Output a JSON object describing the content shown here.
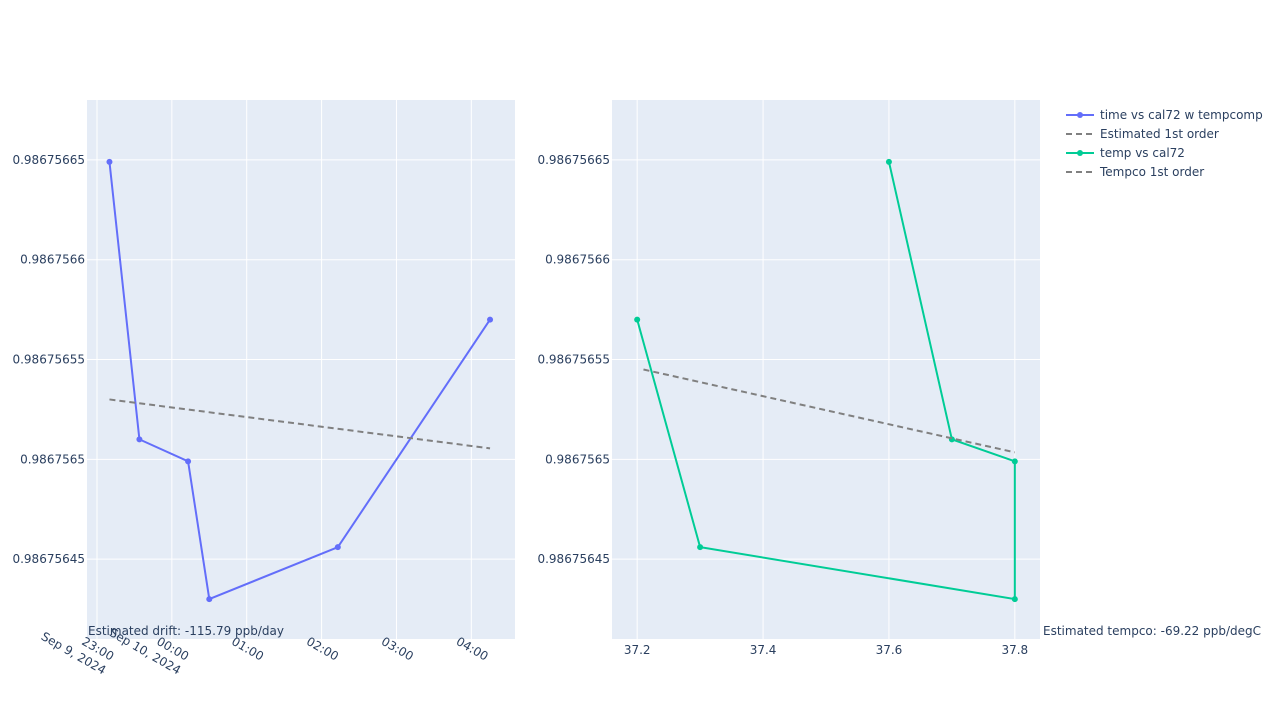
{
  "chart_data": [
    {
      "type": "line",
      "x_type": "date",
      "series": [
        {
          "name": "time vs cal72 w tempcomp",
          "mode": "lines+markers",
          "color": "#636efa",
          "x": [
            "2024-09-09 23:10",
            "2024-09-09 23:34",
            "2024-09-10 00:13",
            "2024-09-10 00:30",
            "2024-09-10 02:13",
            "2024-09-10 04:15"
          ],
          "y": [
            0.986756649,
            0.98675651,
            0.986756499,
            0.98675643,
            0.986756456,
            0.98675657
          ]
        },
        {
          "name": "Estimated 1st order",
          "mode": "lines",
          "dash": "dash",
          "color": "#808080",
          "x": [
            "2024-09-09 23:10",
            "2024-09-10 04:15"
          ],
          "y": [
            0.98675653,
            0.9867565055
          ]
        }
      ],
      "x_ticks": [
        {
          "t": "2024-09-09 23:00",
          "label": "23:00",
          "sub": "Sep 9, 2024"
        },
        {
          "t": "2024-09-10 00:00",
          "label": "00:00",
          "sub": "Sep 10, 2024"
        },
        {
          "t": "2024-09-10 01:00",
          "label": "01:00",
          "sub": ""
        },
        {
          "t": "2024-09-10 02:00",
          "label": "02:00",
          "sub": ""
        },
        {
          "t": "2024-09-10 03:00",
          "label": "03:00",
          "sub": ""
        },
        {
          "t": "2024-09-10 04:00",
          "label": "04:00",
          "sub": ""
        }
      ],
      "xlim": [
        "2024-09-09 22:52",
        "2024-09-10 04:35"
      ],
      "y_ticks": [
        0.98675645,
        0.9867565,
        0.98675655,
        0.9867566,
        0.98675665
      ],
      "y_tick_labels": [
        "0.98675645",
        "0.9867565",
        "0.98675655",
        "0.9867566",
        "0.98675665"
      ],
      "ylim": [
        0.98675641,
        0.98675668
      ],
      "grid": true,
      "annotation": "Estimated drift:  -115.79 ppb/day"
    },
    {
      "type": "line",
      "x_type": "linear",
      "series": [
        {
          "name": "temp vs cal72",
          "mode": "lines+markers",
          "color": "#00cc96",
          "x": [
            37.6,
            37.7,
            37.8,
            37.8,
            37.3,
            37.2
          ],
          "y": [
            0.986756649,
            0.98675651,
            0.986756499,
            0.98675643,
            0.986756456,
            0.98675657
          ]
        },
        {
          "name": "Tempco 1st order",
          "mode": "lines",
          "dash": "dash",
          "color": "#808080",
          "x": [
            37.21,
            37.8
          ],
          "y": [
            0.986756545,
            0.9867565035
          ]
        }
      ],
      "x_ticks": [
        37.2,
        37.4,
        37.6,
        37.8
      ],
      "x_tick_labels": [
        "37.2",
        "37.4",
        "37.6",
        "37.8"
      ],
      "xlim": [
        37.16,
        37.84
      ],
      "y_ticks": [
        0.98675645,
        0.9867565,
        0.98675655,
        0.9867566,
        0.98675665
      ],
      "y_tick_labels": [
        "0.98675645",
        "0.9867565",
        "0.98675655",
        "0.9867566",
        "0.98675665"
      ],
      "ylim": [
        0.98675641,
        0.98675668
      ],
      "grid": true,
      "annotation": "Estimated tempco:  -69.22 ppb/degC"
    }
  ],
  "legend": {
    "placement": "top-right",
    "items": [
      {
        "label": "time vs cal72 w tempcomp",
        "color": "#636efa",
        "style": "line-marker"
      },
      {
        "label": "Estimated 1st order",
        "color": "#808080",
        "style": "dash"
      },
      {
        "label": "temp vs cal72",
        "color": "#00cc96",
        "style": "line-marker"
      },
      {
        "label": "Tempco 1st order",
        "color": "#808080",
        "style": "dash"
      }
    ]
  },
  "colors": {
    "plot_bg": "#e5ecf6",
    "grid": "#ffffff",
    "text": "#2a3f5f"
  }
}
